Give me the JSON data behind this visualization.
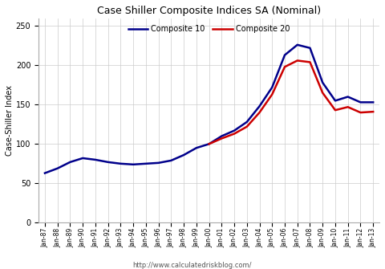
{
  "title": "Case Shiller Composite Indices SA (Nominal)",
  "ylabel": "Case-Shiller Index",
  "footnote": "http://www.calculatedriskblog.com/",
  "legend": [
    "Composite 10",
    "Composite 20"
  ],
  "colors": [
    "#00008B",
    "#CC0000"
  ],
  "ylim": [
    0,
    260
  ],
  "yticks": [
    0,
    50,
    100,
    150,
    200,
    250
  ],
  "figsize": [
    4.8,
    3.35
  ],
  "dpi": 100,
  "x_labels": [
    "Jan-87",
    "Jan-88",
    "Jan-89",
    "Jan-90",
    "Jan-91",
    "Jan-92",
    "Jan-93",
    "Jan-94",
    "Jan-95",
    "Jan-96",
    "Jan-97",
    "Jan-98",
    "Jan-99",
    "Jan-00",
    "Jan-01",
    "Jan-02",
    "Jan-03",
    "Jan-04",
    "Jan-05",
    "Jan-06",
    "Jan-07",
    "Jan-08",
    "Jan-09",
    "Jan-10",
    "Jan-11",
    "Jan-12",
    "Jan-13"
  ],
  "composite10": [
    63,
    69,
    77,
    82,
    80,
    77,
    75,
    74,
    75,
    76,
    79,
    86,
    95,
    100,
    110,
    117,
    128,
    148,
    172,
    213,
    226,
    222,
    178,
    155,
    160,
    153,
    153
  ],
  "composite20": [
    null,
    null,
    null,
    null,
    null,
    null,
    null,
    null,
    null,
    null,
    null,
    null,
    null,
    100,
    107,
    113,
    122,
    140,
    163,
    198,
    206,
    204,
    165,
    143,
    147,
    140,
    141
  ]
}
